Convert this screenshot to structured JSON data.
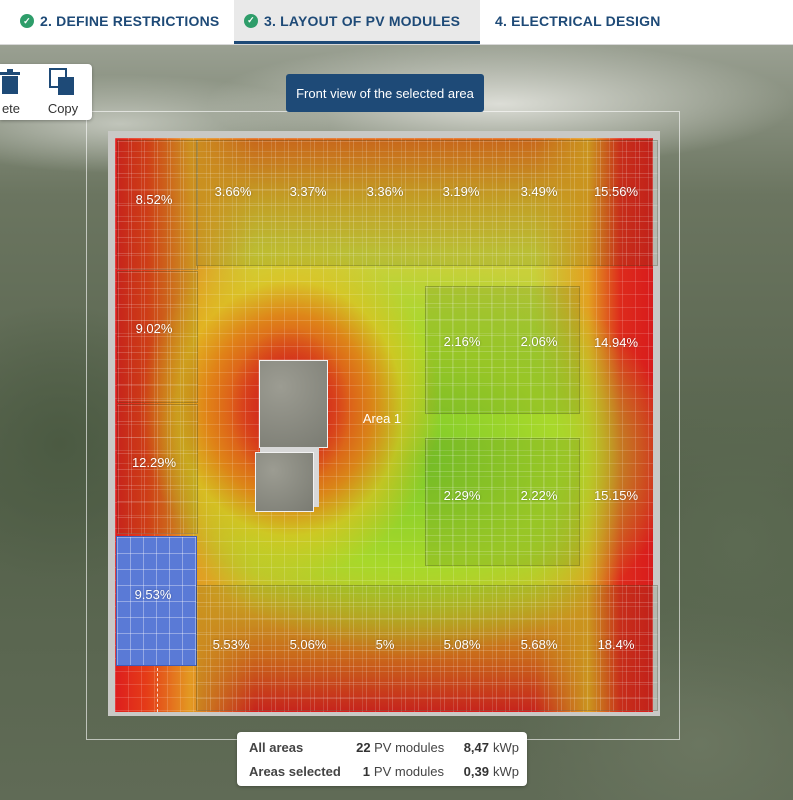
{
  "tabs": [
    {
      "label": "2. DEFINE RESTRICTIONS",
      "done": true
    },
    {
      "label": "3. LAYOUT OF PV MODULES",
      "done": true,
      "active": true
    },
    {
      "label": "4. ELECTRICAL DESIGN",
      "done": false
    }
  ],
  "toolbar": {
    "delete_label": "ete",
    "copy_label": "Copy"
  },
  "tooltip": "Front view of the selected area",
  "area_label": "Area 1",
  "module_shading": {
    "top_row": [
      "8.52%",
      "3.66%",
      "3.37%",
      "3.36%",
      "3.19%",
      "3.49%",
      "15.56%"
    ],
    "left_col": [
      "9.02%",
      "12.29%",
      "9.53%"
    ],
    "right_upper": [
      "2.16%",
      "2.06%",
      "14.94%"
    ],
    "right_middle": [
      "2.29%",
      "2.22%",
      "15.15%"
    ],
    "bottom_row": [
      "5.53%",
      "5.06%",
      "5%",
      "5.08%",
      "5.68%",
      "18.4%"
    ]
  },
  "summary": {
    "all": {
      "label": "All areas",
      "count": "22",
      "count_unit": "PV modules",
      "power": "8,47",
      "power_unit": "kWp"
    },
    "selected": {
      "label": "Areas selected",
      "count": "1",
      "count_unit": "PV modules",
      "power": "0,39",
      "power_unit": "kWp"
    }
  },
  "colors": {
    "brand": "#1e4a77",
    "check": "#2e9d6a",
    "selected_module": "#5a7ad6"
  }
}
